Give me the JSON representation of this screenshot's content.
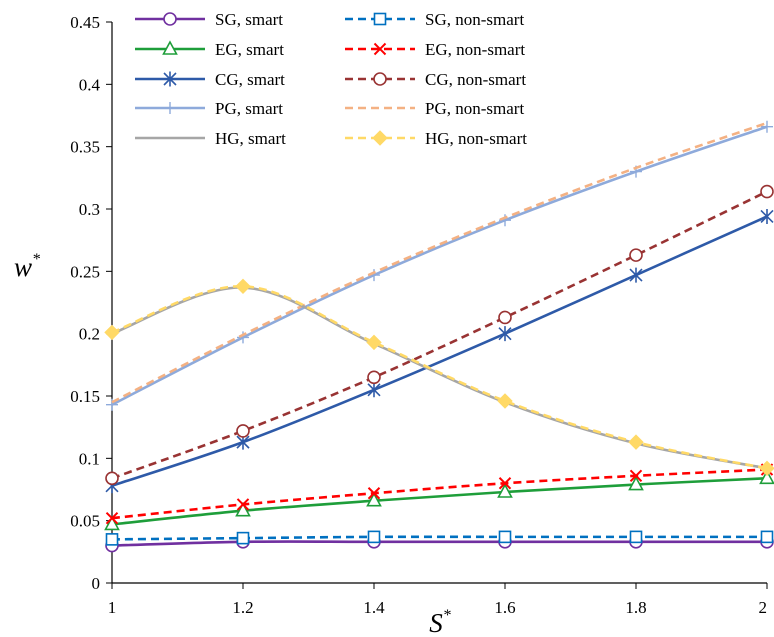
{
  "chart_data": {
    "type": "line",
    "x": [
      1,
      1.2,
      1.4,
      1.6,
      1.8,
      2
    ],
    "xticks": [
      "1",
      "1.2",
      "1.4",
      "1.6",
      "1.8",
      "2"
    ],
    "xlim": [
      1,
      2
    ],
    "yticks": [
      "0",
      "0.05",
      "0.1",
      "0.15",
      "0.2",
      "0.25",
      "0.3",
      "0.35",
      "0.4",
      "0.45"
    ],
    "ylim": [
      0,
      0.45
    ],
    "xlabel": "S",
    "xlabel_sup": "*",
    "ylabel": "w",
    "ylabel_sup": "*",
    "grid": false,
    "legend_position": "top-left",
    "series": [
      {
        "name": "SG, smart",
        "values": [
          0.03,
          0.033,
          0.033,
          0.033,
          0.033,
          0.033
        ],
        "color": "#7030a0",
        "dash": "solid",
        "marker": "circle-open"
      },
      {
        "name": "SG, non-smart",
        "values": [
          0.035,
          0.036,
          0.037,
          0.037,
          0.037,
          0.037
        ],
        "color": "#0070c0",
        "dash": "dashed",
        "marker": "square-open"
      },
      {
        "name": "EG, smart",
        "values": [
          0.047,
          0.058,
          0.066,
          0.073,
          0.079,
          0.084
        ],
        "color": "#1e9e3a",
        "dash": "solid",
        "marker": "triangle-open"
      },
      {
        "name": "EG, non-smart",
        "values": [
          0.052,
          0.063,
          0.072,
          0.08,
          0.086,
          0.091
        ],
        "color": "#ff0000",
        "dash": "dashed",
        "marker": "x"
      },
      {
        "name": "CG, smart",
        "values": [
          0.078,
          0.113,
          0.155,
          0.2,
          0.247,
          0.294
        ],
        "color": "#2e5aa8",
        "dash": "solid",
        "marker": "asterisk"
      },
      {
        "name": "CG, non-smart",
        "values": [
          0.084,
          0.122,
          0.165,
          0.213,
          0.263,
          0.314
        ],
        "color": "#993333",
        "dash": "dashed",
        "marker": "circle-open"
      },
      {
        "name": "PG, smart",
        "values": [
          0.143,
          0.197,
          0.247,
          0.291,
          0.33,
          0.366
        ],
        "color": "#8eaadb",
        "dash": "solid",
        "marker": "plus"
      },
      {
        "name": "PG, non-smart",
        "values": [
          0.145,
          0.199,
          0.249,
          0.293,
          0.333,
          0.369
        ],
        "color": "#f4b183",
        "dash": "dashed",
        "marker": "none"
      },
      {
        "name": "HG, smart",
        "values": [
          0.2,
          0.237,
          0.192,
          0.145,
          0.112,
          0.092
        ],
        "color": "#a6a6a6",
        "dash": "solid",
        "marker": "none"
      },
      {
        "name": "HG, non-smart",
        "values": [
          0.201,
          0.238,
          0.193,
          0.146,
          0.113,
          0.092
        ],
        "color": "#ffd966",
        "dash": "dashed",
        "marker": "diamond"
      }
    ]
  }
}
